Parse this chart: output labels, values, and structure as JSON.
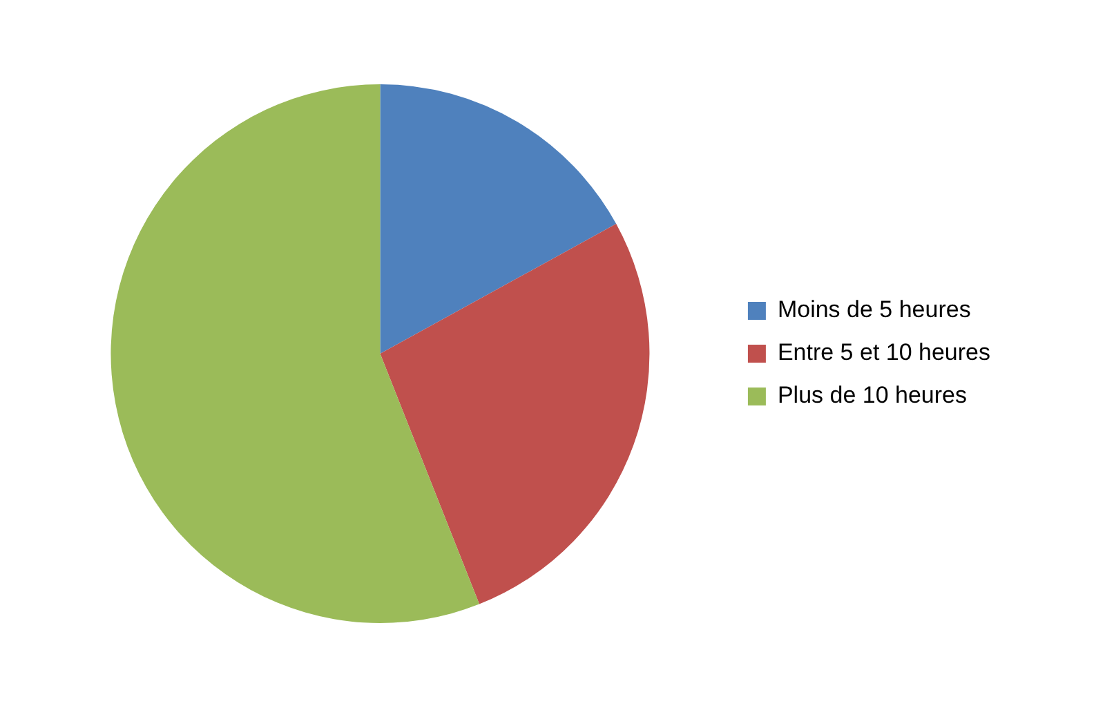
{
  "chart_data": {
    "type": "pie",
    "categories": [
      "Moins de 5 heures",
      "Entre 5 et 10 heures",
      "Plus de 10 heures"
    ],
    "values": [
      17,
      27,
      56
    ],
    "colors": [
      "#4f81bd",
      "#c0504d",
      "#9bbb59"
    ],
    "legend": "right"
  }
}
